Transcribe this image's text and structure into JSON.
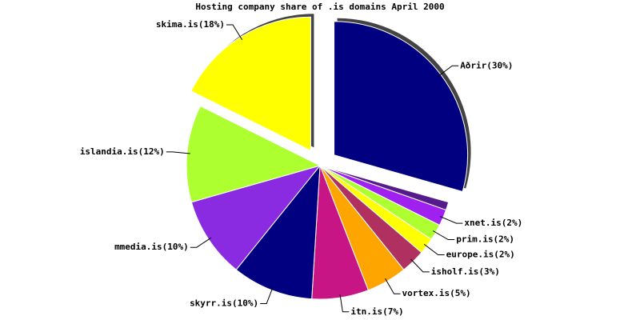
{
  "chart_data": {
    "type": "pie",
    "title": "Hosting company share of .is domains April 2000",
    "categories": [
      "Aðrir(30%)",
      null,
      "xnet.is(2%)",
      "prim.is(2%)",
      "europe.is(2%)",
      "isholf.is(3%)",
      "vortex.is(5%)",
      "itn.is(7%)",
      "skyrr.is(10%)",
      "mmedia.is(10%)",
      "islandia.is(12%)",
      "skima.is(18%)"
    ],
    "values": [
      30,
      1,
      2,
      2,
      2,
      3,
      5,
      7,
      10,
      10,
      12,
      18
    ],
    "colors": [
      "#000080",
      "#551a8b",
      "#a020f0",
      "#adff2f",
      "#ffff00",
      "#b03060",
      "#ffa500",
      "#c71585",
      "#000080",
      "#8a2be2",
      "#adff2f",
      "#ffff00"
    ],
    "exploded": [
      true,
      false,
      false,
      false,
      false,
      false,
      false,
      false,
      false,
      false,
      false,
      true
    ]
  }
}
